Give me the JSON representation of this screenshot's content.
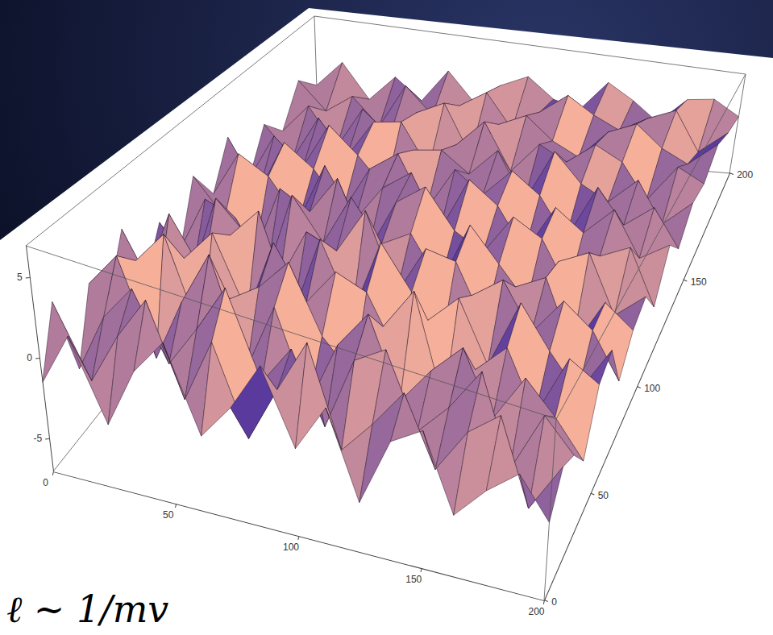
{
  "chart_data": {
    "type": "surface",
    "x": [
      0,
      12.5,
      25,
      37.5,
      50,
      62.5,
      75,
      87.5,
      100,
      112.5,
      125,
      137.5,
      150,
      162.5,
      175,
      187.5,
      200
    ],
    "y": [
      0,
      12.5,
      25,
      37.5,
      50,
      62.5,
      75,
      87.5,
      100,
      112.5,
      125,
      137.5,
      150,
      162.5,
      175,
      187.5,
      200
    ],
    "z": [
      [
        -1.5,
        2.0,
        -3.0,
        1.0,
        3.5,
        -2.0,
        0.5,
        4.0,
        -1.0,
        2.5,
        -3.5,
        1.5,
        3.0,
        -2.5,
        0.0,
        2.0,
        -1.0
      ],
      [
        2.5,
        -2.0,
        1.5,
        4.5,
        -1.5,
        3.0,
        -3.0,
        1.0,
        5.0,
        -2.0,
        0.5,
        3.5,
        -1.5,
        2.0,
        4.0,
        -2.5,
        1.5
      ],
      [
        -3.0,
        1.0,
        3.5,
        -1.0,
        2.0,
        5.5,
        -0.5,
        2.5,
        -2.5,
        3.0,
        4.5,
        -1.0,
        1.5,
        5.0,
        -2.0,
        3.0,
        0.5
      ],
      [
        1.5,
        4.0,
        -2.5,
        2.0,
        6.0,
        -1.5,
        3.5,
        -3.0,
        2.0,
        5.0,
        -1.0,
        2.0,
        4.5,
        -0.5,
        3.5,
        1.0,
        -2.0
      ],
      [
        -0.5,
        2.5,
        5.0,
        -2.0,
        1.5,
        3.0,
        5.5,
        0.5,
        -2.0,
        2.5,
        6.0,
        -2.5,
        1.0,
        3.5,
        -1.5,
        4.0,
        2.5
      ],
      [
        3.0,
        -1.5,
        2.0,
        4.5,
        -1.0,
        5.0,
        1.0,
        4.0,
        3.0,
        -1.5,
        2.0,
        4.5,
        -0.5,
        5.5,
        2.0,
        -1.0,
        3.5
      ],
      [
        -2.0,
        3.5,
        -0.5,
        3.0,
        5.5,
        -2.0,
        4.5,
        -1.0,
        5.5,
        2.0,
        -2.0,
        3.0,
        5.0,
        1.0,
        4.5,
        2.5,
        -1.5
      ],
      [
        1.0,
        -2.5,
        4.0,
        1.5,
        -1.5,
        3.0,
        2.0,
        6.0,
        -0.5,
        4.0,
        3.5,
        -1.5,
        2.5,
        4.0,
        -2.0,
        3.0,
        1.0
      ],
      [
        -2.5,
        2.0,
        1.0,
        -3.0,
        4.0,
        0.5,
        5.0,
        1.5,
        3.0,
        -1.0,
        5.0,
        2.0,
        -1.0,
        3.5,
        5.0,
        -0.5,
        2.0
      ],
      [
        2.0,
        -1.0,
        -3.5,
        2.5,
        1.0,
        4.5,
        -1.5,
        3.5,
        5.5,
        2.0,
        0.5,
        4.5,
        3.0,
        -1.5,
        2.5,
        4.0,
        -1.5
      ],
      [
        -1.0,
        3.0,
        1.5,
        -2.0,
        3.5,
        -1.0,
        2.5,
        4.5,
        -0.5,
        5.0,
        3.0,
        -1.0,
        4.0,
        2.0,
        5.0,
        0.5,
        2.5
      ],
      [
        2.5,
        -2.0,
        3.0,
        1.0,
        -2.5,
        2.0,
        4.0,
        -1.0,
        3.5,
        1.5,
        4.5,
        2.5,
        -1.5,
        4.5,
        1.0,
        3.5,
        -0.5
      ],
      [
        -3.0,
        1.5,
        -1.0,
        3.5,
        1.0,
        -2.0,
        2.5,
        3.0,
        1.0,
        4.0,
        -1.0,
        5.0,
        2.0,
        0.5,
        3.5,
        -1.0,
        2.0
      ],
      [
        0.5,
        -2.5,
        2.0,
        -1.5,
        2.5,
        3.0,
        -1.5,
        1.5,
        4.5,
        -0.5,
        3.0,
        1.5,
        4.0,
        2.5,
        -1.5,
        3.0,
        1.5
      ],
      [
        -2.0,
        1.0,
        -3.0,
        1.5,
        -1.0,
        2.0,
        3.5,
        -2.0,
        2.0,
        3.5,
        1.0,
        -0.5,
        3.0,
        4.5,
        2.0,
        0.5,
        3.5
      ],
      [
        1.5,
        -1.5,
        0.5,
        -2.5,
        2.5,
        -0.5,
        1.0,
        3.0,
        -1.0,
        1.5,
        4.0,
        2.0,
        0.5,
        2.5,
        4.0,
        -1.0,
        2.0
      ],
      [
        -1.0,
        2.0,
        -2.0,
        1.0,
        -1.5,
        2.5,
        -1.0,
        1.5,
        3.0,
        0.5,
        -0.5,
        3.5,
        1.5,
        -1.0,
        2.5,
        3.0,
        1.0
      ]
    ],
    "xlim": [
      0,
      200
    ],
    "ylim": [
      0,
      200
    ],
    "zlim": [
      -7,
      7
    ],
    "xticks": [
      0,
      50,
      100,
      150,
      200
    ],
    "yticks": [
      0,
      50,
      100,
      150,
      200
    ],
    "zticks": [
      -5,
      0,
      5
    ],
    "annotations": [
      {
        "text": "ℓ ~ 1/mv"
      }
    ]
  }
}
